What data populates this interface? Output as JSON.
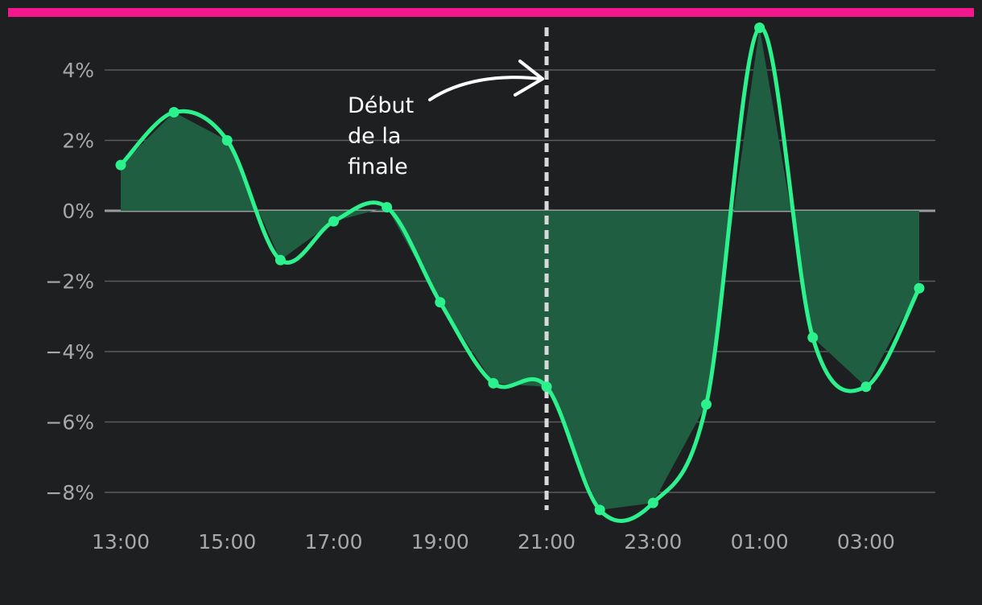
{
  "colors": {
    "background": "#1e1f21",
    "top_bar": "#f2178c",
    "line": "#2cf28e",
    "fill": "#1f5e40",
    "grid": "#5a5b5d",
    "zero_line": "#9a9b9c",
    "marker_line": "#d9d9d9",
    "tick_text": "#a7a8aa",
    "annotation": "#ffffff"
  },
  "chart_data": {
    "type": "area",
    "title": "",
    "xlabel": "",
    "ylabel": "",
    "x": [
      "13:00",
      "14:00",
      "15:00",
      "16:00",
      "17:00",
      "18:00",
      "19:00",
      "20:00",
      "21:00",
      "22:00",
      "23:00",
      "00:00",
      "01:00",
      "02:00",
      "03:00",
      "04:00"
    ],
    "x_tick_labels": [
      "13:00",
      "15:00",
      "17:00",
      "19:00",
      "21:00",
      "23:00",
      "01:00",
      "03:00"
    ],
    "y_tick_values": [
      4,
      2,
      0,
      -2,
      -4,
      -6,
      -8
    ],
    "y_tick_labels": [
      "4%",
      "2%",
      "0%",
      "−2%",
      "−4%",
      "−6%",
      "−8%"
    ],
    "ylim": [
      -8.9,
      5.6
    ],
    "values": [
      1.3,
      2.8,
      2.0,
      -1.4,
      -0.3,
      0.1,
      -2.6,
      -4.9,
      -5.0,
      -8.5,
      -8.3,
      -5.5,
      5.2,
      -3.6,
      -5.0,
      -2.2
    ],
    "grid": true,
    "vertical_marker": {
      "x": "21:00"
    },
    "annotation": {
      "lines": [
        "Début",
        "de la",
        "finale"
      ]
    }
  }
}
